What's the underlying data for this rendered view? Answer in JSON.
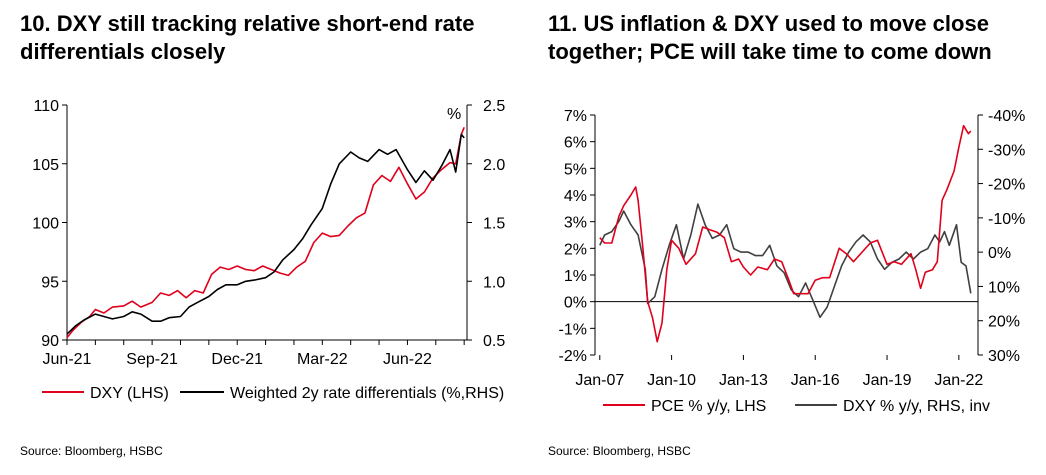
{
  "chart_data": [
    {
      "type": "line",
      "title": "10. DXY still tracking relative short-end rate differentials closely",
      "x_tick_labels": [
        "Jun-21",
        "Sep-21",
        "Dec-21",
        "Mar-22",
        "Jun-22"
      ],
      "y_left": {
        "min": 90,
        "max": 110,
        "ticks": [
          90,
          95,
          100,
          105,
          110
        ],
        "tick_labels": [
          "90",
          "95",
          "100",
          "105",
          "110"
        ]
      },
      "y_right": {
        "min": 0.5,
        "max": 2.5,
        "ticks": [
          0.5,
          1.0,
          1.5,
          2.0,
          2.5
        ],
        "tick_labels": [
          "0.5",
          "1.0",
          "1.5",
          "2.0",
          "2.5"
        ],
        "unit_label": "%"
      },
      "x_range_months": [
        0,
        14.1
      ],
      "series": [
        {
          "name": "DXY (LHS)",
          "color": "#e0001b",
          "axis": "left",
          "x": [
            0,
            0.2,
            0.5,
            0.8,
            1.0,
            1.3,
            1.6,
            2.0,
            2.3,
            2.6,
            3.0,
            3.3,
            3.6,
            3.9,
            4.2,
            4.5,
            4.8,
            5.1,
            5.4,
            5.7,
            6.0,
            6.3,
            6.6,
            6.9,
            7.2,
            7.5,
            7.8,
            8.1,
            8.4,
            8.7,
            9.0,
            9.3,
            9.6,
            9.9,
            10.2,
            10.5,
            10.8,
            11.1,
            11.4,
            11.7,
            12.0,
            12.3,
            12.6,
            12.9,
            13.2,
            13.5,
            13.7,
            13.9,
            14.0
          ],
          "y": [
            90.2,
            90.8,
            91.5,
            92.0,
            92.6,
            92.3,
            92.8,
            92.9,
            93.3,
            92.8,
            93.2,
            94.0,
            93.8,
            94.2,
            93.6,
            94.2,
            94.0,
            95.6,
            96.2,
            96.0,
            96.3,
            96.0,
            95.9,
            96.3,
            96.0,
            95.7,
            95.5,
            96.2,
            96.7,
            98.3,
            99.1,
            98.8,
            98.9,
            99.7,
            100.4,
            100.8,
            103.2,
            104.0,
            103.5,
            104.7,
            103.3,
            102.0,
            102.6,
            103.8,
            104.5,
            105.1,
            105.0,
            107.5,
            108.1
          ]
        },
        {
          "name": "Weighted 2y rate differentials (%,RHS)",
          "color": "#000000",
          "axis": "right",
          "x": [
            0,
            0.3,
            0.6,
            1.0,
            1.3,
            1.6,
            2.0,
            2.3,
            2.6,
            3.0,
            3.3,
            3.6,
            4.0,
            4.3,
            4.6,
            5.0,
            5.3,
            5.6,
            6.0,
            6.3,
            6.6,
            7.0,
            7.3,
            7.6,
            8.0,
            8.3,
            8.6,
            9.0,
            9.3,
            9.6,
            10.0,
            10.3,
            10.6,
            11.0,
            11.3,
            11.6,
            12.0,
            12.3,
            12.6,
            12.9,
            13.2,
            13.5,
            13.7,
            13.9,
            14.0
          ],
          "y": [
            0.55,
            0.62,
            0.67,
            0.72,
            0.7,
            0.68,
            0.7,
            0.74,
            0.72,
            0.66,
            0.66,
            0.69,
            0.7,
            0.78,
            0.82,
            0.87,
            0.93,
            0.97,
            0.97,
            1.0,
            1.01,
            1.03,
            1.08,
            1.18,
            1.27,
            1.36,
            1.48,
            1.62,
            1.83,
            2.0,
            2.1,
            2.05,
            2.02,
            2.12,
            2.08,
            2.12,
            1.95,
            1.84,
            1.94,
            1.86,
            1.98,
            2.12,
            1.93,
            2.25,
            2.22
          ]
        }
      ],
      "source": "Source: Bloomberg, HSBC"
    },
    {
      "type": "line",
      "title": "11. US inflation & DXY used to move close together; PCE will take time to come down",
      "x_tick_labels": [
        "Jan-07",
        "Jan-10",
        "Jan-13",
        "Jan-16",
        "Jan-19",
        "Jan-22"
      ],
      "x_ticks_year": [
        2007,
        2010,
        2013,
        2016,
        2019,
        2022
      ],
      "x_range_year": [
        2006.8,
        2022.8
      ],
      "y_left": {
        "min": -2,
        "max": 7,
        "ticks": [
          -2,
          -1,
          0,
          1,
          2,
          3,
          4,
          5,
          6,
          7
        ],
        "tick_labels": [
          "-2%",
          "-1%",
          "0%",
          "1%",
          "2%",
          "3%",
          "4%",
          "5%",
          "6%",
          "7%"
        ]
      },
      "y_right": {
        "min": -40,
        "max": 30,
        "inverted": true,
        "ticks": [
          -40,
          -30,
          -20,
          -10,
          0,
          10,
          20,
          30
        ],
        "tick_labels": [
          "-40%",
          "-30%",
          "-20%",
          "-10%",
          "0%",
          "10%",
          "20%",
          "30%"
        ]
      },
      "series": [
        {
          "name": "PCE % y/y, LHS",
          "color": "#e0001b",
          "axis": "left",
          "x": [
            2007.0,
            2007.2,
            2007.5,
            2007.8,
            2008.0,
            2008.3,
            2008.5,
            2008.6,
            2008.8,
            2009.0,
            2009.2,
            2009.4,
            2009.6,
            2009.8,
            2010.0,
            2010.3,
            2010.6,
            2011.0,
            2011.3,
            2011.6,
            2011.9,
            2012.2,
            2012.5,
            2012.8,
            2013.0,
            2013.3,
            2013.6,
            2014.0,
            2014.3,
            2014.6,
            2014.9,
            2015.1,
            2015.4,
            2015.7,
            2016.0,
            2016.3,
            2016.6,
            2017.0,
            2017.3,
            2017.6,
            2018.0,
            2018.3,
            2018.6,
            2019.0,
            2019.3,
            2019.6,
            2020.0,
            2020.2,
            2020.4,
            2020.6,
            2020.9,
            2021.1,
            2021.3,
            2021.5,
            2021.8,
            2022.0,
            2022.2,
            2022.4,
            2022.5
          ],
          "y": [
            2.4,
            2.2,
            2.2,
            3.2,
            3.6,
            4.0,
            4.3,
            3.8,
            2.0,
            0.0,
            -0.6,
            -1.5,
            -0.8,
            1.2,
            2.3,
            2.0,
            1.4,
            1.8,
            2.8,
            2.7,
            2.6,
            2.4,
            1.5,
            1.6,
            1.3,
            1.0,
            1.3,
            1.2,
            1.6,
            1.5,
            0.8,
            0.3,
            0.3,
            0.3,
            0.8,
            0.9,
            0.9,
            2.0,
            1.8,
            1.5,
            1.9,
            2.2,
            2.3,
            1.4,
            1.5,
            1.4,
            1.8,
            1.2,
            0.5,
            1.1,
            1.2,
            1.5,
            3.8,
            4.2,
            4.9,
            5.8,
            6.6,
            6.3,
            6.4
          ]
        },
        {
          "name": "DXY % y/y, RHS, inv",
          "color": "#404040",
          "axis": "right",
          "x": [
            2007.0,
            2007.2,
            2007.5,
            2007.8,
            2008.0,
            2008.3,
            2008.6,
            2008.9,
            2009.0,
            2009.3,
            2009.6,
            2009.9,
            2010.2,
            2010.5,
            2010.8,
            2011.1,
            2011.4,
            2011.7,
            2012.0,
            2012.3,
            2012.6,
            2012.9,
            2013.2,
            2013.5,
            2013.8,
            2014.1,
            2014.4,
            2014.7,
            2015.0,
            2015.3,
            2015.6,
            2015.9,
            2016.2,
            2016.5,
            2016.8,
            2017.1,
            2017.4,
            2017.7,
            2018.0,
            2018.3,
            2018.6,
            2018.9,
            2019.2,
            2019.5,
            2019.8,
            2020.1,
            2020.4,
            2020.7,
            2021.0,
            2021.2,
            2021.4,
            2021.6,
            2021.9,
            2022.1,
            2022.3,
            2022.5
          ],
          "y": [
            -2,
            -5,
            -6,
            -9,
            -12,
            -8,
            -5,
            5,
            15,
            13,
            5,
            -2,
            -8,
            2,
            -5,
            -14,
            -8,
            -4,
            -5,
            -8,
            -1,
            0,
            0,
            1,
            1,
            -2,
            4,
            6,
            11,
            13,
            9,
            14,
            19,
            16,
            10,
            4,
            0,
            -3,
            -5,
            -3,
            2,
            5,
            3,
            2,
            0,
            2,
            0,
            -1,
            -5,
            -3,
            -6,
            -2,
            -8,
            3,
            4,
            12
          ]
        }
      ],
      "source": "Source: Bloomberg, HSBC"
    }
  ]
}
